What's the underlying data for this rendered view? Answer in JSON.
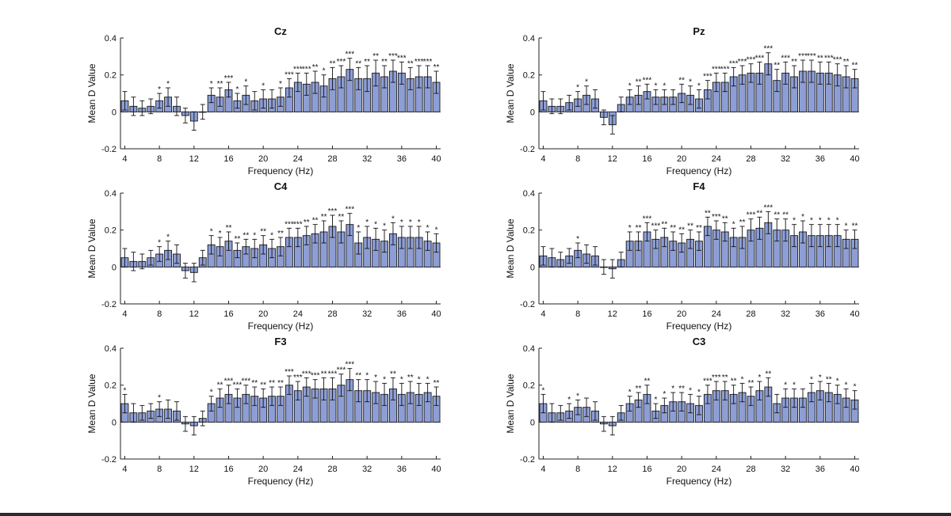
{
  "figure": {
    "bar_color": "#8d9ed6",
    "bar_edge": "#1a1a1a",
    "zero_line_color": "#5d6a9c"
  },
  "chart_data": [
    {
      "type": "bar",
      "title": "Cz",
      "xlabel": "Frequency (Hz)",
      "ylabel": "Mean D Value",
      "ylim": [
        -0.2,
        0.4
      ],
      "yticks": [
        "-0.2",
        "0",
        "0.2",
        "0.4"
      ],
      "xticks": [
        "4",
        "8",
        "12",
        "16",
        "20",
        "24",
        "28",
        "32",
        "36",
        "40"
      ],
      "x": [
        4,
        5,
        6,
        7,
        8,
        9,
        10,
        11,
        12,
        13,
        14,
        15,
        16,
        17,
        18,
        19,
        20,
        21,
        22,
        23,
        24,
        25,
        26,
        27,
        28,
        29,
        30,
        31,
        32,
        33,
        34,
        35,
        36,
        37,
        38,
        39,
        40
      ],
      "values": [
        0.06,
        0.03,
        0.02,
        0.03,
        0.06,
        0.08,
        0.03,
        -0.02,
        -0.05,
        0.0,
        0.09,
        0.08,
        0.12,
        0.06,
        0.09,
        0.06,
        0.07,
        0.07,
        0.08,
        0.13,
        0.16,
        0.15,
        0.16,
        0.14,
        0.18,
        0.19,
        0.23,
        0.18,
        0.18,
        0.21,
        0.19,
        0.22,
        0.21,
        0.18,
        0.19,
        0.19,
        0.16
      ],
      "errors": [
        0.05,
        0.05,
        0.04,
        0.04,
        0.04,
        0.05,
        0.05,
        0.04,
        0.05,
        0.04,
        0.04,
        0.05,
        0.04,
        0.04,
        0.05,
        0.05,
        0.05,
        0.05,
        0.05,
        0.05,
        0.05,
        0.06,
        0.06,
        0.06,
        0.06,
        0.06,
        0.06,
        0.06,
        0.07,
        0.07,
        0.06,
        0.06,
        0.06,
        0.06,
        0.06,
        0.06,
        0.06
      ],
      "significance": [
        "",
        "",
        "",
        "",
        "*",
        "*",
        "",
        "",
        "",
        "",
        "*",
        "**",
        "***",
        "*",
        "*",
        "",
        "*",
        "",
        "*",
        "***",
        "***",
        "***",
        "**",
        "*",
        "**",
        "***",
        "***",
        "**",
        "**",
        "**",
        "**",
        "***",
        "***",
        "**",
        "***",
        "***",
        "**"
      ]
    },
    {
      "type": "bar",
      "title": "Pz",
      "xlabel": "Frequency (Hz)",
      "ylabel": "Mean D Value",
      "ylim": [
        -0.2,
        0.4
      ],
      "yticks": [
        "-0.2",
        "0",
        "0.2",
        "0.4"
      ],
      "xticks": [
        "4",
        "8",
        "12",
        "16",
        "20",
        "24",
        "28",
        "32",
        "36",
        "40"
      ],
      "x": [
        4,
        5,
        6,
        7,
        8,
        9,
        10,
        11,
        12,
        13,
        14,
        15,
        16,
        17,
        18,
        19,
        20,
        21,
        22,
        23,
        24,
        25,
        26,
        27,
        28,
        29,
        30,
        31,
        32,
        33,
        34,
        35,
        36,
        37,
        38,
        39,
        40
      ],
      "values": [
        0.06,
        0.03,
        0.03,
        0.05,
        0.07,
        0.09,
        0.07,
        -0.03,
        -0.07,
        0.04,
        0.08,
        0.09,
        0.11,
        0.08,
        0.08,
        0.08,
        0.1,
        0.09,
        0.07,
        0.12,
        0.16,
        0.16,
        0.19,
        0.2,
        0.21,
        0.21,
        0.26,
        0.17,
        0.21,
        0.19,
        0.22,
        0.22,
        0.21,
        0.21,
        0.2,
        0.19,
        0.18
      ],
      "errors": [
        0.05,
        0.04,
        0.04,
        0.04,
        0.04,
        0.05,
        0.05,
        0.04,
        0.05,
        0.04,
        0.04,
        0.05,
        0.04,
        0.04,
        0.04,
        0.04,
        0.05,
        0.05,
        0.05,
        0.05,
        0.05,
        0.05,
        0.05,
        0.05,
        0.05,
        0.06,
        0.06,
        0.06,
        0.06,
        0.06,
        0.06,
        0.06,
        0.06,
        0.06,
        0.06,
        0.06,
        0.05
      ],
      "significance": [
        "",
        "",
        "",
        "",
        "*",
        "*",
        "",
        "",
        "",
        "",
        "*",
        "**",
        "***",
        "*",
        "*",
        "",
        "**",
        "*",
        "*",
        "***",
        "***",
        "***",
        "***",
        "***",
        "***",
        "***",
        "***",
        "**",
        "***",
        "**",
        "***",
        "***",
        "**",
        "***",
        "***",
        "**",
        "**"
      ]
    },
    {
      "type": "bar",
      "title": "C4",
      "xlabel": "Frequency (Hz)",
      "ylabel": "Mean D Value",
      "ylim": [
        -0.2,
        0.4
      ],
      "yticks": [
        "-0.2",
        "0",
        "0.2",
        "0.4"
      ],
      "xticks": [
        "4",
        "8",
        "12",
        "16",
        "20",
        "24",
        "28",
        "32",
        "36",
        "40"
      ],
      "x": [
        4,
        5,
        6,
        7,
        8,
        9,
        10,
        11,
        12,
        13,
        14,
        15,
        16,
        17,
        18,
        19,
        20,
        21,
        22,
        23,
        24,
        25,
        26,
        27,
        28,
        29,
        30,
        31,
        32,
        33,
        34,
        35,
        36,
        37,
        38,
        39,
        40
      ],
      "values": [
        0.05,
        0.03,
        0.03,
        0.05,
        0.07,
        0.09,
        0.07,
        -0.02,
        -0.03,
        0.05,
        0.12,
        0.11,
        0.14,
        0.09,
        0.11,
        0.1,
        0.12,
        0.1,
        0.11,
        0.16,
        0.16,
        0.17,
        0.18,
        0.19,
        0.22,
        0.19,
        0.23,
        0.13,
        0.16,
        0.15,
        0.14,
        0.18,
        0.16,
        0.16,
        0.16,
        0.14,
        0.13
      ],
      "errors": [
        0.05,
        0.05,
        0.04,
        0.04,
        0.04,
        0.05,
        0.05,
        0.04,
        0.05,
        0.04,
        0.05,
        0.05,
        0.05,
        0.04,
        0.04,
        0.05,
        0.05,
        0.05,
        0.05,
        0.05,
        0.05,
        0.05,
        0.05,
        0.06,
        0.06,
        0.06,
        0.06,
        0.06,
        0.06,
        0.06,
        0.06,
        0.06,
        0.06,
        0.06,
        0.06,
        0.05,
        0.05
      ],
      "significance": [
        "",
        "",
        "",
        "",
        "*",
        "*",
        "",
        "",
        "",
        "",
        "*",
        "*",
        "**",
        "**",
        "**",
        "*",
        "**",
        "*",
        "**",
        "***",
        "***",
        "**",
        "**",
        "**",
        "***",
        "**",
        "***",
        "*",
        "*",
        "*",
        "*",
        "*",
        "*",
        "*",
        "*",
        "*",
        "*"
      ]
    },
    {
      "type": "bar",
      "title": "F4",
      "xlabel": "Frequency (Hz)",
      "ylabel": "Mean D Value",
      "ylim": [
        -0.2,
        0.4
      ],
      "yticks": [
        "-0.2",
        "0",
        "0.2",
        "0.4"
      ],
      "xticks": [
        "4",
        "8",
        "12",
        "16",
        "20",
        "24",
        "28",
        "32",
        "36",
        "40"
      ],
      "x": [
        4,
        5,
        6,
        7,
        8,
        9,
        10,
        11,
        12,
        13,
        14,
        15,
        16,
        17,
        18,
        19,
        20,
        21,
        22,
        23,
        24,
        25,
        26,
        27,
        28,
        29,
        30,
        31,
        32,
        33,
        34,
        35,
        36,
        37,
        38,
        39,
        40
      ],
      "values": [
        0.06,
        0.05,
        0.04,
        0.06,
        0.09,
        0.07,
        0.06,
        0.0,
        -0.01,
        0.04,
        0.14,
        0.14,
        0.19,
        0.15,
        0.16,
        0.14,
        0.13,
        0.15,
        0.14,
        0.22,
        0.2,
        0.19,
        0.16,
        0.16,
        0.2,
        0.21,
        0.24,
        0.2,
        0.2,
        0.17,
        0.19,
        0.17,
        0.17,
        0.17,
        0.17,
        0.15,
        0.15
      ],
      "errors": [
        0.05,
        0.05,
        0.04,
        0.04,
        0.04,
        0.05,
        0.05,
        0.04,
        0.05,
        0.04,
        0.05,
        0.05,
        0.05,
        0.05,
        0.05,
        0.05,
        0.05,
        0.05,
        0.05,
        0.05,
        0.05,
        0.05,
        0.05,
        0.06,
        0.06,
        0.06,
        0.06,
        0.06,
        0.06,
        0.06,
        0.06,
        0.06,
        0.06,
        0.06,
        0.06,
        0.05,
        0.05
      ],
      "significance": [
        "",
        "",
        "",
        "",
        "*",
        "",
        "",
        "",
        "",
        "",
        "*",
        "**",
        "***",
        "***",
        "**",
        "**",
        "**",
        "**",
        "**",
        "**",
        "***",
        "**",
        "*",
        "**",
        "***",
        "**",
        "***",
        "**",
        "**",
        "*",
        "*",
        "*",
        "*",
        "*",
        "*",
        "*",
        "**"
      ]
    },
    {
      "type": "bar",
      "title": "F3",
      "xlabel": "Frequency (Hz)",
      "ylabel": "Mean D Value",
      "ylim": [
        -0.2,
        0.4
      ],
      "yticks": [
        "-0.2",
        "0",
        "0.2",
        "0.4"
      ],
      "xticks": [
        "4",
        "8",
        "12",
        "16",
        "20",
        "24",
        "28",
        "32",
        "36",
        "40"
      ],
      "x": [
        4,
        5,
        6,
        7,
        8,
        9,
        10,
        11,
        12,
        13,
        14,
        15,
        16,
        17,
        18,
        19,
        20,
        21,
        22,
        23,
        24,
        25,
        26,
        27,
        28,
        29,
        30,
        31,
        32,
        33,
        34,
        35,
        36,
        37,
        38,
        39,
        40
      ],
      "values": [
        0.1,
        0.05,
        0.05,
        0.06,
        0.07,
        0.07,
        0.06,
        -0.01,
        -0.02,
        0.02,
        0.1,
        0.13,
        0.15,
        0.13,
        0.15,
        0.14,
        0.13,
        0.14,
        0.14,
        0.2,
        0.17,
        0.19,
        0.18,
        0.18,
        0.18,
        0.2,
        0.23,
        0.17,
        0.17,
        0.16,
        0.15,
        0.18,
        0.15,
        0.16,
        0.15,
        0.16,
        0.14
      ],
      "errors": [
        0.05,
        0.05,
        0.04,
        0.04,
        0.04,
        0.05,
        0.05,
        0.04,
        0.05,
        0.04,
        0.04,
        0.05,
        0.05,
        0.05,
        0.05,
        0.05,
        0.05,
        0.05,
        0.05,
        0.05,
        0.05,
        0.05,
        0.05,
        0.06,
        0.06,
        0.06,
        0.06,
        0.06,
        0.06,
        0.06,
        0.06,
        0.06,
        0.06,
        0.06,
        0.06,
        0.05,
        0.05
      ],
      "significance": [
        "*",
        "",
        "",
        "",
        "*",
        "",
        "",
        "",
        "",
        "",
        "*",
        "**",
        "***",
        "***",
        "***",
        "**",
        "**",
        "**",
        "**",
        "***",
        "***",
        "***",
        "***",
        "**",
        "***",
        "***",
        "***",
        "**",
        "*",
        "*",
        "*",
        "**",
        "*",
        "**",
        "*",
        "*",
        "**"
      ]
    },
    {
      "type": "bar",
      "title": "C3",
      "xlabel": "Frequency (Hz)",
      "ylabel": "Mean D Value",
      "ylim": [
        -0.2,
        0.4
      ],
      "yticks": [
        "-0.2",
        "0",
        "0.2",
        "0.4"
      ],
      "xticks": [
        "4",
        "8",
        "12",
        "16",
        "20",
        "24",
        "28",
        "32",
        "36",
        "40"
      ],
      "x": [
        4,
        5,
        6,
        7,
        8,
        9,
        10,
        11,
        12,
        13,
        14,
        15,
        16,
        17,
        18,
        19,
        20,
        21,
        22,
        23,
        24,
        25,
        26,
        27,
        28,
        29,
        30,
        31,
        32,
        33,
        34,
        35,
        36,
        37,
        38,
        39,
        40
      ],
      "values": [
        0.1,
        0.05,
        0.05,
        0.06,
        0.08,
        0.08,
        0.06,
        -0.01,
        -0.02,
        0.05,
        0.1,
        0.12,
        0.15,
        0.06,
        0.09,
        0.11,
        0.11,
        0.1,
        0.09,
        0.15,
        0.17,
        0.17,
        0.15,
        0.16,
        0.14,
        0.17,
        0.19,
        0.1,
        0.13,
        0.13,
        0.13,
        0.16,
        0.17,
        0.16,
        0.15,
        0.13,
        0.12
      ],
      "errors": [
        0.05,
        0.05,
        0.04,
        0.04,
        0.04,
        0.05,
        0.05,
        0.04,
        0.05,
        0.04,
        0.04,
        0.04,
        0.05,
        0.04,
        0.04,
        0.05,
        0.05,
        0.05,
        0.05,
        0.05,
        0.05,
        0.05,
        0.05,
        0.05,
        0.05,
        0.05,
        0.05,
        0.05,
        0.05,
        0.05,
        0.05,
        0.05,
        0.05,
        0.05,
        0.05,
        0.05,
        0.05
      ],
      "significance": [
        "*",
        "",
        "",
        "*",
        "*",
        "",
        "",
        "",
        "",
        "",
        "*",
        "**",
        "**",
        "*",
        "*",
        "*",
        "**",
        "*",
        "*",
        "***",
        "***",
        "**",
        "**",
        "*",
        "**",
        "*",
        "**",
        "",
        "*",
        "*",
        "",
        "*",
        "*",
        "**",
        "*",
        "*",
        "*"
      ]
    }
  ]
}
